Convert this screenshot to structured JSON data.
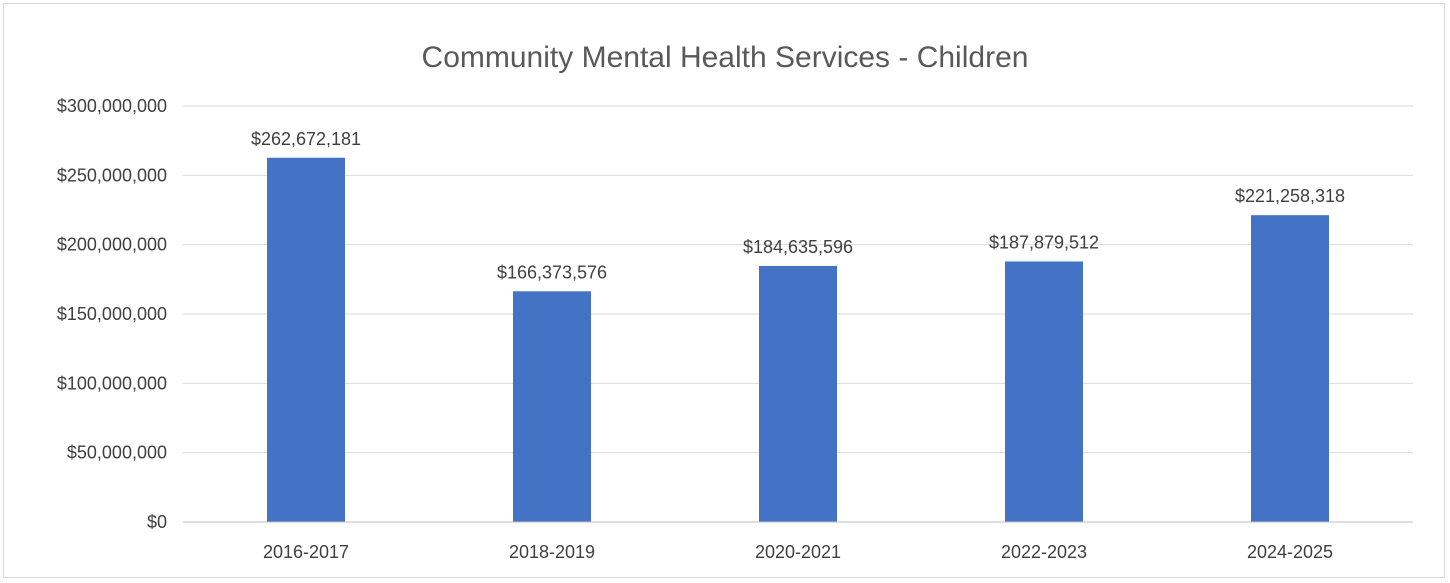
{
  "chart_data": {
    "type": "bar",
    "title": "Community Mental Health Services - Children",
    "xlabel": "",
    "ylabel": "",
    "categories": [
      "2016-2017",
      "2018-2019",
      "2020-2021",
      "2022-2023",
      "2024-2025"
    ],
    "values": [
      262672181,
      166373576,
      184635596,
      187879512,
      221258318
    ],
    "data_labels": [
      "$262,672,181",
      "$166,373,576",
      "$184,635,596",
      "$187,879,512",
      "$221,258,318"
    ],
    "ylim": [
      0,
      300000000
    ],
    "yticks": [
      0,
      50000000,
      100000000,
      150000000,
      200000000,
      250000000,
      300000000
    ],
    "ytick_labels": [
      "$0",
      "$50,000,000",
      "$100,000,000",
      "$150,000,000",
      "$200,000,000",
      "$250,000,000",
      "$300,000,000"
    ],
    "grid": true,
    "legend": "none",
    "bar_color": "#4472c4"
  }
}
